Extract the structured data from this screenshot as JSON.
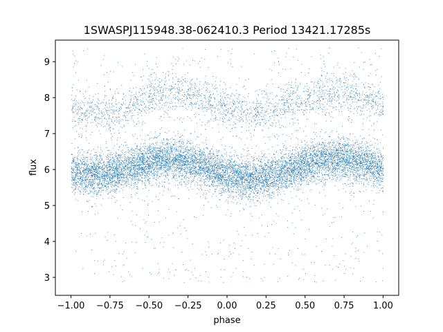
{
  "chart_data": {
    "type": "scatter",
    "title": "1SWASPJ115948.38-062410.3 Period 13421.17285s",
    "xlabel": "phase",
    "ylabel": "flux",
    "xlim": [
      -1.1,
      1.1
    ],
    "ylim": [
      2.5,
      9.6
    ],
    "xticks": [
      -1.0,
      -0.75,
      -0.5,
      -0.25,
      0.0,
      0.25,
      0.5,
      0.75,
      1.0
    ],
    "xtick_labels": [
      "−1.00",
      "−0.75",
      "−0.50",
      "−0.25",
      "0.00",
      "0.25",
      "0.50",
      "0.75",
      "1.00"
    ],
    "yticks": [
      3,
      4,
      5,
      6,
      7,
      8,
      9
    ],
    "ytick_labels": [
      "3",
      "4",
      "5",
      "6",
      "7",
      "8",
      "9"
    ],
    "grid": false,
    "marker_color": "#1f77b4",
    "series": [
      {
        "description_of_distribution": "folded light curve, phase -1 to 1, two periods",
        "main_band": {
          "x": [
            -1.0,
            -0.875,
            -0.75,
            -0.625,
            -0.5,
            -0.375,
            -0.25,
            -0.125,
            0.0,
            0.125,
            0.25,
            0.375,
            0.5,
            0.625,
            0.75,
            0.875,
            1.0
          ],
          "y_center": [
            5.95,
            5.85,
            5.9,
            6.05,
            6.2,
            6.3,
            6.25,
            6.05,
            5.85,
            5.75,
            5.8,
            5.95,
            6.15,
            6.25,
            6.3,
            6.2,
            6.0
          ],
          "spread": 0.28
        },
        "upper_band": {
          "x": [
            -1.0,
            -0.875,
            -0.75,
            -0.625,
            -0.5,
            -0.375,
            -0.25,
            -0.125,
            0.0,
            0.125,
            0.25,
            0.375,
            0.5,
            0.625,
            0.75,
            0.875,
            1.0
          ],
          "y_center": [
            7.7,
            7.55,
            7.6,
            7.75,
            8.0,
            8.15,
            8.1,
            7.9,
            7.75,
            7.6,
            7.6,
            7.8,
            8.0,
            8.1,
            8.15,
            7.95,
            7.8
          ],
          "spread": 0.3
        },
        "flux_min": 2.85,
        "flux_max": 9.4
      }
    ]
  }
}
